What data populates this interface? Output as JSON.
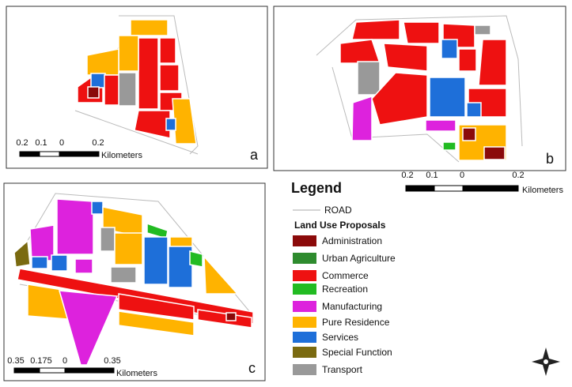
{
  "panels": [
    {
      "letter": "a",
      "scale": {
        "labels": [
          "0.2",
          "0.1",
          "0",
          "0.2"
        ],
        "unit": "Kilometers"
      }
    },
    {
      "letter": "b",
      "scale": {
        "labels": [
          "0.2",
          "0.1",
          "0",
          "0.2"
        ],
        "unit": "Kilometers"
      }
    },
    {
      "letter": "c",
      "scale": {
        "labels": [
          "0.35",
          "0.175",
          "0",
          "0.35"
        ],
        "unit": "Kilometers"
      }
    }
  ],
  "legend": {
    "title": "Legend",
    "road": "ROAD",
    "subtitle": "Land Use Proposals",
    "items": [
      {
        "label": "Administration",
        "color": "#8b0a0a"
      },
      {
        "label": "Urban Agriculture",
        "color": "#2e8b2e"
      },
      {
        "label": "Commerce",
        "color": "#ee1111"
      },
      {
        "label": "Recreation",
        "color": "#22bb22"
      },
      {
        "label": "Manufacturing",
        "color": "#dd22dd"
      },
      {
        "label": "Pure Residence",
        "color": "#ffb300"
      },
      {
        "label": "Services",
        "color": "#1e6fd9"
      },
      {
        "label": "Special Function",
        "color": "#7a6a10"
      },
      {
        "label": "Transport",
        "color": "#999999"
      }
    ]
  }
}
